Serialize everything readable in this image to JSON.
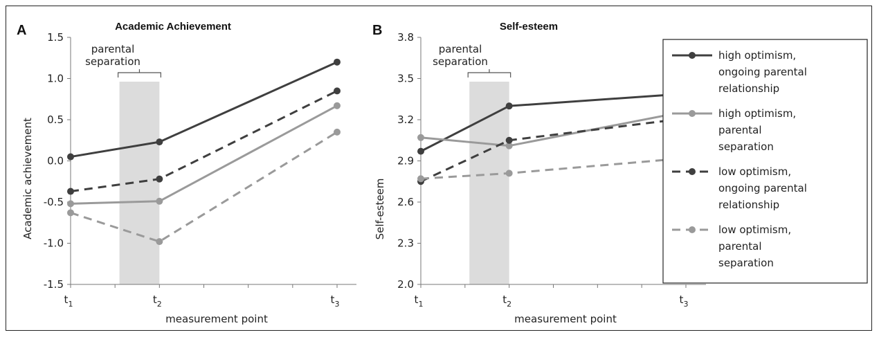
{
  "colors": {
    "dark": "#3f3f3f",
    "light": "#9a9a9a",
    "band": "#dcdcdc"
  },
  "note": {
    "line1": "parental",
    "line2": "separation"
  },
  "legend": [
    {
      "lines": [
        "high optimism,",
        "ongoing parental",
        "relationship"
      ],
      "color": "#3f3f3f",
      "dash": "solid"
    },
    {
      "lines": [
        "high optimism,",
        "parental",
        "separation"
      ],
      "color": "#9a9a9a",
      "dash": "solid"
    },
    {
      "lines": [
        "low optimism,",
        "ongoing parental",
        "relationship"
      ],
      "color": "#3f3f3f",
      "dash": "dashed"
    },
    {
      "lines": [
        "low optimism,",
        "parental",
        "separation"
      ],
      "color": "#9a9a9a",
      "dash": "dashed"
    }
  ],
  "chart_data": [
    {
      "type": "line",
      "panel": "A",
      "title": "Academic Achievement",
      "xlabel": "measurement point",
      "ylabel": "Academic achievement",
      "x_ticks": [
        {
          "main": "t",
          "sub": "1",
          "x": 1
        },
        {
          "main": "t",
          "sub": "2",
          "x": 2
        },
        {
          "main": "t",
          "sub": "3",
          "x": 3
        }
      ],
      "x_positions": [
        0,
        1,
        3
      ],
      "ylim": [
        -1.5,
        1.5
      ],
      "y_ticks": [
        "-1.5",
        "-1.0",
        "-0.5",
        "0.0",
        "0.5",
        "1.0",
        "1.5"
      ],
      "separation_band": [
        0.55,
        1.0
      ],
      "series": [
        {
          "values": [
            0.05,
            0.23,
            1.2
          ],
          "color": "#3f3f3f",
          "dash": "solid"
        },
        {
          "values": [
            -0.52,
            -0.49,
            0.67
          ],
          "color": "#9a9a9a",
          "dash": "solid"
        },
        {
          "values": [
            -0.37,
            -0.22,
            0.85
          ],
          "color": "#3f3f3f",
          "dash": "dashed"
        },
        {
          "values": [
            -0.63,
            -0.98,
            0.35
          ],
          "color": "#9a9a9a",
          "dash": "dashed"
        }
      ]
    },
    {
      "type": "line",
      "panel": "B",
      "title": "Self-esteem",
      "xlabel": "measurement point",
      "ylabel": "Self-esteem",
      "x_ticks": [
        {
          "main": "t",
          "sub": "1",
          "x": 1
        },
        {
          "main": "t",
          "sub": "2",
          "x": 2
        },
        {
          "main": "t",
          "sub": "3",
          "x": 3
        }
      ],
      "x_positions": [
        0,
        1,
        3
      ],
      "ylim": [
        2.0,
        3.8
      ],
      "y_ticks": [
        "2.0",
        "2.3",
        "2.6",
        "2.9",
        "3.2",
        "3.5",
        "3.8"
      ],
      "separation_band": [
        0.55,
        1.0
      ],
      "series": [
        {
          "values": [
            2.97,
            3.3,
            3.39
          ],
          "color": "#3f3f3f",
          "dash": "solid"
        },
        {
          "values": [
            3.07,
            3.01,
            3.26
          ],
          "color": "#9a9a9a",
          "dash": "solid"
        },
        {
          "values": [
            2.75,
            3.05,
            3.21
          ],
          "color": "#3f3f3f",
          "dash": "dashed"
        },
        {
          "values": [
            2.77,
            2.81,
            2.92
          ],
          "color": "#9a9a9a",
          "dash": "dashed"
        }
      ]
    }
  ]
}
